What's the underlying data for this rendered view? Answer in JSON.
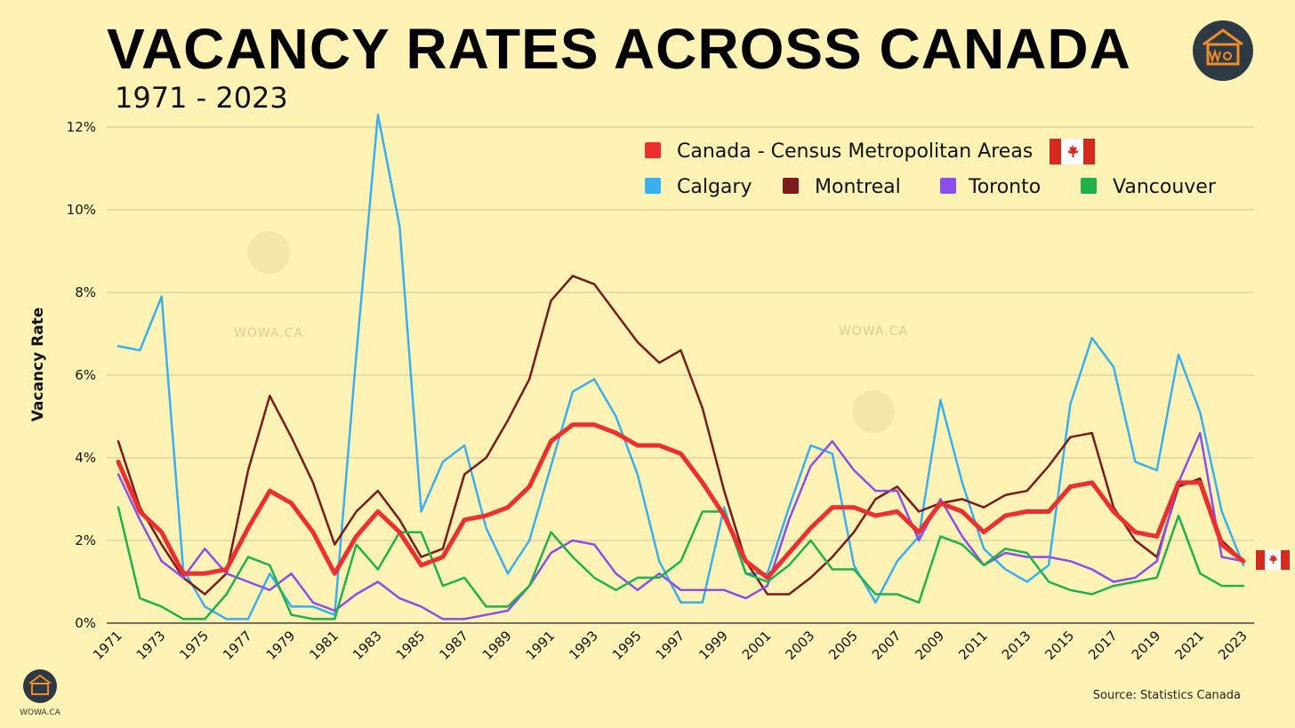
{
  "header": {
    "title": "VACANCY RATES ACROSS CANADA",
    "subtitle": "1971 - 2023"
  },
  "watermark": "WOWA.CA",
  "brand": "WOWA.CA",
  "source": "Source: Statistics Canada",
  "colors": {
    "background": "#FEF3B5",
    "grid": "#c8c39a",
    "axis": "#444444"
  },
  "icons": [
    "canada-flag-icon",
    "wowa-logo-icon"
  ],
  "chart_data": {
    "type": "line",
    "title": "",
    "xlabel": "",
    "ylabel": "Vacancy Rate",
    "ylim": [
      0,
      12
    ],
    "yticks": [
      0,
      2,
      4,
      6,
      8,
      10,
      12
    ],
    "ytick_labels": [
      "0%",
      "2%",
      "4%",
      "6%",
      "8%",
      "10%",
      "12%"
    ],
    "x": [
      1971,
      1972,
      1973,
      1974,
      1975,
      1976,
      1977,
      1978,
      1979,
      1980,
      1981,
      1982,
      1983,
      1984,
      1985,
      1986,
      1987,
      1988,
      1989,
      1990,
      1991,
      1992,
      1993,
      1994,
      1995,
      1996,
      1997,
      1998,
      1999,
      2000,
      2001,
      2002,
      2003,
      2004,
      2005,
      2006,
      2007,
      2008,
      2009,
      2010,
      2011,
      2012,
      2013,
      2014,
      2015,
      2016,
      2017,
      2018,
      2019,
      2020,
      2021,
      2022,
      2023
    ],
    "xtick_labels": [
      "1971",
      "1973",
      "1975",
      "1977",
      "1979",
      "1981",
      "1983",
      "1985",
      "1987",
      "1989",
      "1991",
      "1993",
      "1995",
      "1997",
      "1999",
      "2001",
      "2003",
      "2005",
      "2007",
      "2009",
      "2011",
      "2013",
      "2015",
      "2017",
      "2019",
      "2021",
      "2023"
    ],
    "grid": true,
    "legend_position": "top-right",
    "series": [
      {
        "name": "Calgary",
        "color": "#3AAFEF",
        "values": [
          6.7,
          6.6,
          7.9,
          1.3,
          0.4,
          0.1,
          0.1,
          1.2,
          0.4,
          0.4,
          0.2,
          6.5,
          12.3,
          9.6,
          2.7,
          3.9,
          4.3,
          2.3,
          1.2,
          2.0,
          3.8,
          5.6,
          5.9,
          5.0,
          3.6,
          1.5,
          0.5,
          0.5,
          2.8,
          1.2,
          1.2,
          2.8,
          4.3,
          4.1,
          1.4,
          0.5,
          1.5,
          2.1,
          5.4,
          3.4,
          1.8,
          1.3,
          1.0,
          1.4,
          5.3,
          6.9,
          6.2,
          3.9,
          3.7,
          6.5,
          5.1,
          2.7,
          1.4
        ]
      },
      {
        "name": "Montreal",
        "color": "#7A1A1A",
        "values": [
          4.4,
          2.8,
          1.9,
          1.1,
          0.7,
          1.2,
          3.7,
          5.5,
          4.5,
          3.4,
          1.9,
          2.7,
          3.2,
          2.5,
          1.6,
          1.8,
          3.6,
          4.0,
          4.9,
          5.9,
          7.8,
          8.4,
          8.2,
          7.5,
          6.8,
          6.3,
          6.6,
          5.2,
          3.2,
          1.5,
          0.7,
          0.7,
          1.1,
          1.6,
          2.2,
          3.0,
          3.3,
          2.7,
          2.9,
          3.0,
          2.8,
          3.1,
          3.2,
          3.8,
          4.5,
          4.6,
          2.8,
          2.0,
          1.6,
          3.3,
          3.5,
          2.0,
          1.5
        ]
      },
      {
        "name": "Toronto",
        "color": "#8A4FE8",
        "values": [
          3.6,
          2.5,
          1.5,
          1.1,
          1.8,
          1.2,
          1.0,
          0.8,
          1.2,
          0.5,
          0.3,
          0.7,
          1.0,
          0.6,
          0.4,
          0.1,
          0.1,
          0.2,
          0.3,
          0.9,
          1.7,
          2.0,
          1.9,
          1.2,
          0.8,
          1.2,
          0.8,
          0.8,
          0.8,
          0.6,
          0.9,
          2.5,
          3.8,
          4.4,
          3.7,
          3.2,
          3.2,
          2.0,
          3.0,
          2.1,
          1.4,
          1.7,
          1.6,
          1.6,
          1.5,
          1.3,
          1.0,
          1.1,
          1.5,
          3.4,
          4.6,
          1.6,
          1.5
        ]
      },
      {
        "name": "Vancouver",
        "color": "#1FB24C",
        "values": [
          2.8,
          0.6,
          0.4,
          0.1,
          0.1,
          0.7,
          1.6,
          1.4,
          0.2,
          0.1,
          0.1,
          1.9,
          1.3,
          2.2,
          2.2,
          0.9,
          1.1,
          0.4,
          0.4,
          0.9,
          2.2,
          1.6,
          1.1,
          0.8,
          1.1,
          1.1,
          1.5,
          2.7,
          2.7,
          1.2,
          1.0,
          1.4,
          2.0,
          1.3,
          1.3,
          0.7,
          0.7,
          0.5,
          2.1,
          1.9,
          1.4,
          1.8,
          1.7,
          1.0,
          0.8,
          0.7,
          0.9,
          1.0,
          1.1,
          2.6,
          1.2,
          0.9,
          0.9
        ]
      },
      {
        "name": "Canada - Census Metropolitan Areas",
        "color": "#EE2F2F",
        "values": [
          3.9,
          2.7,
          2.2,
          1.2,
          1.2,
          1.3,
          2.3,
          3.2,
          2.9,
          2.2,
          1.2,
          2.1,
          2.7,
          2.2,
          1.4,
          1.6,
          2.5,
          2.6,
          2.8,
          3.3,
          4.4,
          4.8,
          4.8,
          4.6,
          4.3,
          4.3,
          4.1,
          3.4,
          2.6,
          1.5,
          1.1,
          1.7,
          2.3,
          2.8,
          2.8,
          2.6,
          2.7,
          2.2,
          2.9,
          2.7,
          2.2,
          2.6,
          2.7,
          2.7,
          3.3,
          3.4,
          2.7,
          2.2,
          2.1,
          3.4,
          3.4,
          1.9,
          1.5
        ]
      }
    ]
  }
}
